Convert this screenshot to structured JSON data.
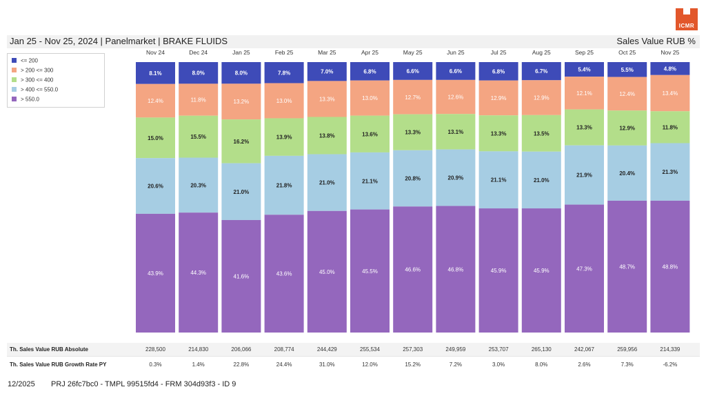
{
  "header": {
    "title": "Jan 25 - Nov 25, 2024 | Panelmarket | BRAKE FLUIDS",
    "subtitle": "Sales Value RUB %",
    "logo_text": "ICMR"
  },
  "legend": [
    {
      "label": "<= 200",
      "color": "#3e4bb8"
    },
    {
      "label": "> 200 <= 300",
      "color": "#f4a582"
    },
    {
      "label": "> 300 <= 400",
      "color": "#b3de8a"
    },
    {
      "label": "> 400 <= 550.0",
      "color": "#a6cde3"
    },
    {
      "label": "> 550.0",
      "color": "#9467bd"
    }
  ],
  "chart_data": {
    "type": "bar",
    "stacked": true,
    "normalized": "percent",
    "title": "Sales Value RUB %",
    "categories": [
      "Nov 24",
      "Dec 24",
      "Jan 25",
      "Feb 25",
      "Mar 25",
      "Apr 25",
      "May 25",
      "Jun 25",
      "Jul 25",
      "Aug 25",
      "Sep 25",
      "Oct 25",
      "Nov 25"
    ],
    "series": [
      {
        "name": "<= 200",
        "color": "#3e4bb8",
        "values": [
          8.1,
          8.0,
          8.0,
          7.8,
          7.0,
          6.8,
          6.6,
          6.6,
          6.8,
          6.7,
          5.4,
          5.5,
          4.8
        ]
      },
      {
        "name": "> 200 <= 300",
        "color": "#f4a582",
        "values": [
          12.4,
          11.8,
          13.2,
          13.0,
          13.3,
          13.0,
          12.7,
          12.6,
          12.9,
          12.9,
          12.1,
          12.4,
          13.4
        ]
      },
      {
        "name": "> 300 <= 400",
        "color": "#b3de8a",
        "values": [
          15.0,
          15.5,
          16.2,
          13.9,
          13.8,
          13.6,
          13.3,
          13.1,
          13.3,
          13.5,
          13.3,
          12.9,
          11.8
        ]
      },
      {
        "name": "> 400 <= 550.0",
        "color": "#a6cde3",
        "values": [
          20.6,
          20.3,
          21.0,
          21.8,
          21.0,
          21.1,
          20.8,
          20.9,
          21.1,
          21.0,
          21.9,
          20.4,
          21.3
        ]
      },
      {
        "name": "> 550.0",
        "color": "#9467bd",
        "values": [
          43.9,
          44.3,
          41.6,
          43.6,
          45.0,
          45.5,
          46.6,
          46.8,
          45.9,
          45.9,
          47.3,
          48.7,
          48.8
        ]
      }
    ],
    "value_labels": [
      [
        "8.1%",
        "8.0%",
        "8.0%",
        "7.8%",
        "7.0%",
        "6.8%",
        "6.6%",
        "6.6%",
        "6.8%",
        "6.7%",
        "5.4%",
        "5.5%",
        "4.8%"
      ],
      [
        "12.4%",
        "11.8%",
        "13.2%",
        "13.0%",
        "13.3%",
        "13.0%",
        "12.7%",
        "12.6%",
        "12.9%",
        "12.9%",
        "12.1%",
        "12.4%",
        "13.4%"
      ],
      [
        "15.0%",
        "15.5%",
        "16.2%",
        "13.9%",
        "13.8%",
        "13.6%",
        "13.3%",
        "13.1%",
        "13.3%",
        "13.5%",
        "13.3%",
        "12.9%",
        "11.8%"
      ],
      [
        "20.6%",
        "20.3%",
        "21.0%",
        "21.8%",
        "21.0%",
        "21.1%",
        "20.8%",
        "20.9%",
        "21.1%",
        "21.0%",
        "21.9%",
        "20.4%",
        "21.3%"
      ],
      [
        "43.9%",
        "44.3%",
        "41.6%",
        "43.6%",
        "45.0%",
        "45.5%",
        "46.6%",
        "46.8%",
        "45.9%",
        "45.9%",
        "47.3%",
        "48.7%",
        "48.8%"
      ]
    ],
    "ylim": [
      0,
      100
    ]
  },
  "table": {
    "rows": [
      {
        "label": "Th. Sales Value RUB Absolute",
        "values": [
          "228,500",
          "214,830",
          "206,066",
          "208,774",
          "244,429",
          "255,534",
          "257,303",
          "249,959",
          "253,707",
          "265,130",
          "242,067",
          "259,956",
          "214,339"
        ]
      },
      {
        "label": "Th. Sales Value RUB Growth Rate PY",
        "values": [
          "0.3%",
          "1.4%",
          "22.8%",
          "24.4%",
          "31.0%",
          "12.0%",
          "15.2%",
          "7.2%",
          "3.0%",
          "8.0%",
          "2.6%",
          "7.3%",
          "-6.2%"
        ]
      }
    ]
  },
  "footer": {
    "date": "12/2025",
    "id": "PRJ 26fc7bc0 - TMPL 99515fd4 - FRM 304d93f3 - ID 9"
  }
}
